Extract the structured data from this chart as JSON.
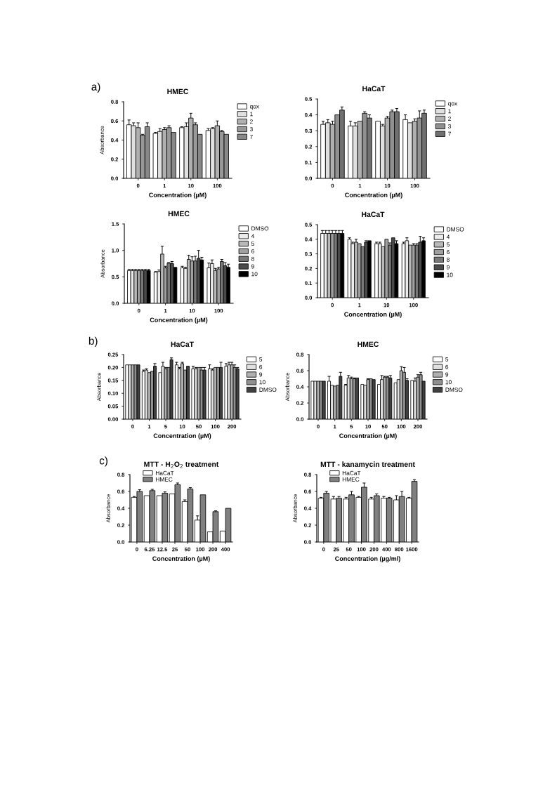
{
  "chart_data": [
    {
      "type": "bar",
      "title": "HMEC",
      "xlabel": "Concentration (µM)",
      "ylabel": "Absorbance",
      "annotations": [
        "a)"
      ],
      "categories": [
        "0",
        "1",
        "10",
        "100"
      ],
      "ylim": [
        0,
        0.8
      ],
      "yticks": [
        {
          "value": 0,
          "label": "0.0"
        },
        0.2,
        0.4,
        0.6,
        0.8
      ],
      "legend": "right",
      "series": [
        {
          "name": "qox",
          "color": "#ffffff",
          "values": [
            0.56,
            0.47,
            0.53,
            0.5
          ],
          "errors": [
            0.05,
            0.01,
            0.01,
            0.02
          ]
        },
        {
          "name": "1",
          "color": "#e0e0e0",
          "values": [
            0.55,
            0.49,
            0.54,
            0.52
          ],
          "errors": [
            0.03,
            0.03,
            0.04,
            0.01
          ]
        },
        {
          "name": "2",
          "color": "#b0b0b0",
          "values": [
            0.53,
            0.51,
            0.63,
            0.55
          ],
          "errors": [
            0.05,
            0.02,
            0.05,
            0.05
          ]
        },
        {
          "name": "3",
          "color": "#989898",
          "values": [
            0.45,
            0.53,
            0.56,
            0.49
          ],
          "errors": [
            0.01,
            0.02,
            0.02,
            0.01
          ]
        },
        {
          "name": "7",
          "color": "#888888",
          "values": [
            0.54,
            0.48,
            0.46,
            0.46
          ],
          "errors": [
            0.04,
            null,
            null,
            null
          ]
        }
      ]
    },
    {
      "type": "bar",
      "title": "HaCaT",
      "xlabel": "Concentration (µM)",
      "categories": [
        "0",
        "1",
        "10",
        "100"
      ],
      "ylim": [
        0,
        0.5
      ],
      "yticks": [
        {
          "value": 0,
          "label": "0.0"
        },
        0.1,
        0.2,
        0.3,
        0.4,
        0.5
      ],
      "legend": "right",
      "series": [
        {
          "name": "qox",
          "color": "#ffffff",
          "values": [
            0.34,
            0.33,
            0.36,
            0.37
          ],
          "errors": [
            0.02,
            0.03,
            null,
            0.03
          ]
        },
        {
          "name": "1",
          "color": "#e0e0e0",
          "values": [
            0.35,
            0.33,
            0.33,
            0.35
          ],
          "errors": [
            0.02,
            0.02,
            0.01,
            null
          ]
        },
        {
          "name": "2",
          "color": "#b0b0b0",
          "values": [
            0.34,
            0.36,
            0.38,
            0.36
          ],
          "errors": [
            0.02,
            null,
            0.01,
            0.015
          ]
        },
        {
          "name": "3",
          "color": "#909090",
          "values": [
            0.4,
            0.41,
            0.42,
            0.38
          ],
          "errors": [
            null,
            0.01,
            0.01,
            0.045
          ]
        },
        {
          "name": "7",
          "color": "#707070",
          "values": [
            0.43,
            0.38,
            0.42,
            0.41
          ],
          "errors": [
            0.02,
            0.02,
            0.02,
            0.02
          ]
        }
      ]
    },
    {
      "type": "bar",
      "title": "HMEC",
      "xlabel": "Concentration (µM)",
      "ylabel": "Absorbance",
      "categories": [
        "0",
        "1",
        "10",
        "100"
      ],
      "ylim": [
        0,
        1.5
      ],
      "yticks": [
        {
          "value": 0,
          "label": "0.0"
        },
        0.5,
        {
          "value": 1,
          "label": "1.0"
        },
        1.5
      ],
      "legend": "right",
      "series": [
        {
          "name": "DMSO",
          "color": "#ffffff",
          "values": [
            0.62,
            0.59,
            0.67,
            0.67
          ],
          "errors": [
            0.02,
            0.01,
            0.03,
            0.09
          ]
        },
        {
          "name": "4",
          "color": "#ececec",
          "values": [
            0.62,
            0.6,
            0.66,
            0.75
          ],
          "errors": [
            0.02,
            0.03,
            0.02,
            0.07
          ]
        },
        {
          "name": "5",
          "color": "#b8b8b8",
          "values": [
            0.62,
            0.93,
            0.83,
            0.62
          ],
          "errors": [
            0.02,
            0.15,
            0.08,
            0.04
          ]
        },
        {
          "name": "6",
          "color": "#a0a0a0",
          "values": [
            0.62,
            0.67,
            0.8,
            0.65
          ],
          "errors": [
            0.02,
            0.03,
            0.08,
            0.03
          ]
        },
        {
          "name": "8",
          "color": "#787878",
          "values": [
            0.62,
            0.76,
            0.8,
            0.79
          ],
          "errors": [
            0.02,
            0.01,
            0.09,
            0.04
          ]
        },
        {
          "name": "9",
          "color": "#4a4a4a",
          "values": [
            0.62,
            0.75,
            0.85,
            0.71
          ],
          "errors": [
            0.02,
            0.04,
            0.15,
            0.06
          ]
        },
        {
          "name": "10",
          "color": "#000000",
          "values": [
            0.62,
            0.68,
            0.82,
            0.68
          ],
          "errors": [
            0.02,
            null,
            0.05,
            0.06
          ]
        }
      ]
    },
    {
      "type": "bar",
      "title": "HaCaT",
      "xlabel": "Concentration (µM)",
      "categories": [
        "0",
        "1",
        "10",
        "100"
      ],
      "ylim": [
        0,
        0.5
      ],
      "yticks": [
        {
          "value": 0,
          "label": "0.0"
        },
        0.1,
        0.2,
        0.3,
        0.4,
        0.5
      ],
      "legend": "right",
      "series": [
        {
          "name": "DMSO",
          "color": "#ffffff",
          "values": [
            0.44,
            0.4,
            0.37,
            0.37
          ],
          "errors": [
            0.02,
            0.01,
            0.01,
            0.01
          ]
        },
        {
          "name": "4",
          "color": "#ececec",
          "values": [
            0.44,
            0.37,
            0.37,
            0.39
          ],
          "errors": [
            0.02,
            0.01,
            0.01,
            0.02
          ]
        },
        {
          "name": "5",
          "color": "#b8b8b8",
          "values": [
            0.44,
            0.38,
            0.35,
            0.36
          ],
          "errors": [
            0.02,
            0.02,
            null,
            null
          ]
        },
        {
          "name": "6",
          "color": "#a0a0a0",
          "values": [
            0.44,
            0.37,
            0.4,
            0.36
          ],
          "errors": [
            0.02,
            null,
            null,
            0.01
          ]
        },
        {
          "name": "8",
          "color": "#787878",
          "values": [
            0.44,
            0.35,
            0.36,
            0.36
          ],
          "errors": [
            0.02,
            null,
            0.015,
            0.01
          ]
        },
        {
          "name": "9",
          "color": "#4a4a4a",
          "values": [
            0.44,
            0.38,
            0.41,
            0.38
          ],
          "errors": [
            0.02,
            0.01,
            null,
            0.04
          ]
        },
        {
          "name": "10",
          "color": "#000000",
          "values": [
            0.44,
            0.39,
            0.37,
            0.39
          ],
          "errors": [
            0.02,
            null,
            0.02,
            0.02
          ]
        }
      ]
    },
    {
      "type": "bar",
      "title": "HaCaT",
      "xlabel": "Concentration (µM)",
      "ylabel": "Absorbance",
      "annotations": [
        "b)"
      ],
      "categories": [
        "0",
        "1",
        "5",
        "10",
        "50",
        "100",
        "200"
      ],
      "ylim": [
        0,
        0.25
      ],
      "yticks": [
        {
          "value": 0,
          "label": "0.00"
        },
        0.05,
        {
          "value": 0.1,
          "label": "0.10"
        },
        0.15,
        {
          "value": 0.2,
          "label": "0.20"
        },
        0.25
      ],
      "legend": "right",
      "series": [
        {
          "name": "5",
          "color": "#ffffff",
          "values": [
            0.21,
            0.185,
            0.18,
            0.21,
            0.195,
            0.195,
            0.205
          ],
          "errors": [
            null,
            0.005,
            null,
            0.01,
            0.01,
            0.015,
            0.01
          ]
        },
        {
          "name": "6",
          "color": "#e0e0e0",
          "values": [
            0.21,
            0.19,
            0.205,
            0.195,
            0.195,
            0.19,
            0.21
          ],
          "errors": [
            null,
            0.005,
            0.015,
            0.005,
            0.005,
            0.005,
            0.01
          ]
        },
        {
          "name": "9",
          "color": "#b0b0b0",
          "values": [
            0.21,
            0.18,
            0.195,
            0.215,
            0.2,
            0.2,
            0.21
          ],
          "errors": [
            null,
            null,
            0.005,
            0.005,
            null,
            null,
            0.01
          ]
        },
        {
          "name": "10",
          "color": "#909090",
          "values": [
            0.21,
            0.185,
            0.2,
            0.19,
            0.19,
            0.2,
            0.2
          ],
          "errors": [
            null,
            null,
            null,
            null,
            0.01,
            null,
            0.01
          ]
        },
        {
          "name": "DMSO",
          "color": "#404040",
          "values": [
            0.21,
            0.205,
            0.23,
            0.205,
            0.19,
            0.2,
            0.195
          ],
          "errors": [
            null,
            0.01,
            0.007,
            null,
            0.01,
            0.02,
            0.005
          ]
        }
      ]
    },
    {
      "type": "bar",
      "title": "HMEC",
      "xlabel": "Concentration (µM)",
      "ylabel": "Absorbance",
      "categories": [
        "0",
        "1",
        "5",
        "10",
        "50",
        "100",
        "200"
      ],
      "ylim": [
        0,
        0.8
      ],
      "yticks": [
        {
          "value": 0,
          "label": "0.0"
        },
        0.2,
        0.4,
        0.6,
        0.8
      ],
      "legend": "right",
      "series": [
        {
          "name": "5",
          "color": "#ffffff",
          "values": [
            0.47,
            0.47,
            0.42,
            0.43,
            0.43,
            0.45,
            0.48
          ],
          "errors": [
            null,
            0.06,
            0.01,
            null,
            null,
            null,
            null
          ]
        },
        {
          "name": "6",
          "color": "#e0e0e0",
          "values": [
            0.47,
            0.42,
            0.51,
            0.42,
            0.49,
            0.49,
            0.47
          ],
          "errors": [
            null,
            null,
            0.03,
            null,
            0.05,
            null,
            0.04
          ]
        },
        {
          "name": "9",
          "color": "#b0b0b0",
          "values": [
            0.47,
            0.41,
            0.5,
            0.49,
            0.52,
            0.6,
            0.52
          ],
          "errors": [
            null,
            null,
            0.02,
            0.01,
            0.01,
            0.05,
            0.03
          ]
        },
        {
          "name": "10",
          "color": "#909090",
          "values": [
            0.47,
            0.42,
            0.5,
            0.5,
            0.52,
            0.58,
            0.55
          ],
          "errors": [
            null,
            null,
            0.01,
            null,
            0.01,
            0.06,
            0.03
          ]
        },
        {
          "name": "DMSO",
          "color": "#404040",
          "values": [
            0.47,
            0.53,
            0.51,
            0.49,
            0.51,
            0.48,
            0.47
          ],
          "errors": [
            null,
            0.05,
            null,
            null,
            0.03,
            0.02,
            null
          ]
        }
      ]
    },
    {
      "type": "bar",
      "title": "MTT - H$_{2}$O$_{2}$ treatment",
      "xlabel": "Concentration (µM)",
      "ylabel": "Absorbance",
      "annotations": [
        "c)"
      ],
      "categories": [
        "0",
        "6.25",
        "12.5",
        "25",
        "50",
        "100",
        "200",
        "400"
      ],
      "ylim": [
        0,
        0.8
      ],
      "yticks": [
        {
          "value": 0,
          "label": "0.0"
        },
        0.2,
        0.4,
        0.6,
        0.8
      ],
      "legend": "top left",
      "series": [
        {
          "name": "HaCaT",
          "color": "#ffffff",
          "values": [
            0.53,
            0.55,
            0.55,
            0.57,
            0.48,
            0.26,
            0.12,
            0.13
          ],
          "errors": [
            0.01,
            null,
            null,
            null,
            0.02,
            0.05,
            null,
            null
          ]
        },
        {
          "name": "HMEC",
          "color": "#808080",
          "values": [
            0.6,
            0.61,
            0.58,
            0.68,
            0.63,
            0.56,
            0.36,
            0.4
          ],
          "errors": [
            0.02,
            0.015,
            0.015,
            0.02,
            0.015,
            null,
            0.01,
            null
          ]
        }
      ]
    },
    {
      "type": "bar",
      "title": "MTT - kanamycin treatment",
      "xlabel": "Concentration (µg/ml)",
      "ylabel": "Absorbance",
      "categories": [
        "0",
        "25",
        "50",
        "100",
        "200",
        "400",
        "800",
        "1600"
      ],
      "ylim": [
        0,
        0.8
      ],
      "yticks": [
        {
          "value": 0,
          "label": "0.0"
        },
        0.2,
        0.4,
        0.6,
        0.8
      ],
      "legend": "top left",
      "series": [
        {
          "name": "HaCaT",
          "color": "#ffffff",
          "values": [
            0.52,
            0.51,
            0.51,
            0.53,
            0.51,
            0.52,
            0.5,
            0.52
          ],
          "errors": [
            0.01,
            0.03,
            0.02,
            0.01,
            0.02,
            0.02,
            0.05,
            0.01
          ]
        },
        {
          "name": "HMEC",
          "color": "#808080",
          "values": [
            0.58,
            0.52,
            0.56,
            0.65,
            0.55,
            0.52,
            0.54,
            0.72
          ],
          "errors": [
            0.02,
            0.02,
            0.04,
            0.05,
            0.02,
            0.01,
            0.06,
            0.02
          ]
        }
      ]
    }
  ]
}
